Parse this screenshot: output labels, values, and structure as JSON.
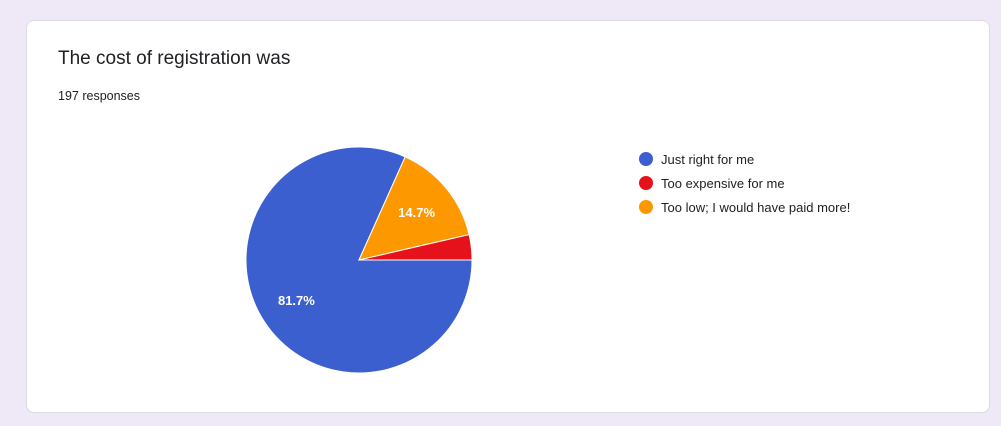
{
  "question": {
    "title": "The cost of registration was",
    "responses_label": "197 responses"
  },
  "chart_data": {
    "type": "pie",
    "title": "The cost of registration was",
    "total_responses": 197,
    "slices": [
      {
        "label": "Just right for me",
        "value": 81.7,
        "percent_label": "81.7%",
        "color": "#3b5fce"
      },
      {
        "label": "Too expensive for me",
        "value": 3.6,
        "percent_label": "",
        "color": "#e5121b"
      },
      {
        "label": "Too low; I would have paid more!",
        "value": 14.7,
        "percent_label": "14.7%",
        "color": "#fd9801"
      }
    ],
    "legend_position": "right"
  }
}
